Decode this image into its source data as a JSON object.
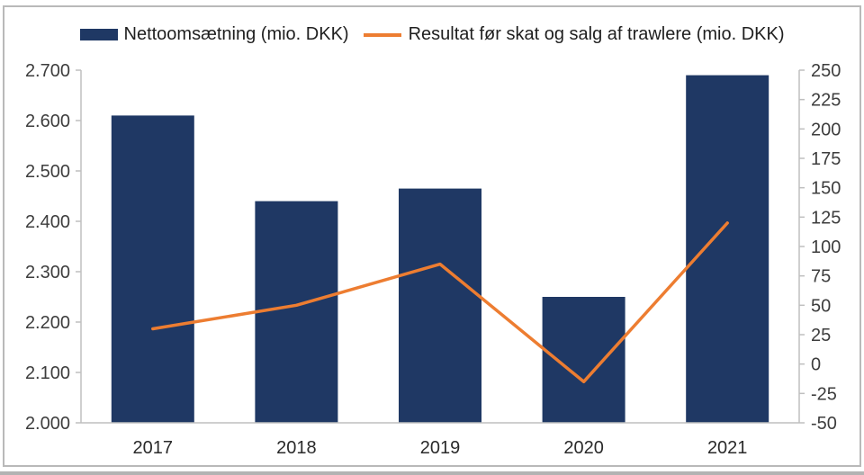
{
  "chart_data": {
    "type": "bar+line combo",
    "categories": [
      "2017",
      "2018",
      "2019",
      "2020",
      "2021"
    ],
    "series": [
      {
        "name": "Nettoomsætning (mio. DKK)",
        "type": "bar",
        "axis": "left",
        "color": "#1F3864",
        "values": [
          2610,
          2440,
          2465,
          2250,
          2690
        ]
      },
      {
        "name": "Resultat før skat og salg af trawlere (mio. DKK)",
        "type": "line",
        "axis": "right",
        "color": "#ED7D31",
        "values": [
          30,
          50,
          85,
          -15,
          120
        ]
      }
    ],
    "left_axis": {
      "min": 2000,
      "max": 2700,
      "step": 100,
      "tick_labels": [
        "2.700",
        "2.600",
        "2.500",
        "2.400",
        "2.300",
        "2.200",
        "2.100",
        "2.000"
      ]
    },
    "right_axis": {
      "min": -50,
      "max": 250,
      "step": 25,
      "tick_labels": [
        "250",
        "225",
        "200",
        "175",
        "150",
        "125",
        "100",
        "75",
        "50",
        "25",
        "0",
        "-25",
        "-50"
      ]
    },
    "grid": false,
    "legend_position": "top",
    "title": "",
    "xlabel": "",
    "ylabel_left": "",
    "ylabel_right": ""
  },
  "colors": {
    "bar": "#1F3864",
    "line": "#ED7D31",
    "axis": "#BFBFBF",
    "tick_text": "#3d3d3d",
    "frame_border": "#b9b9b9"
  }
}
